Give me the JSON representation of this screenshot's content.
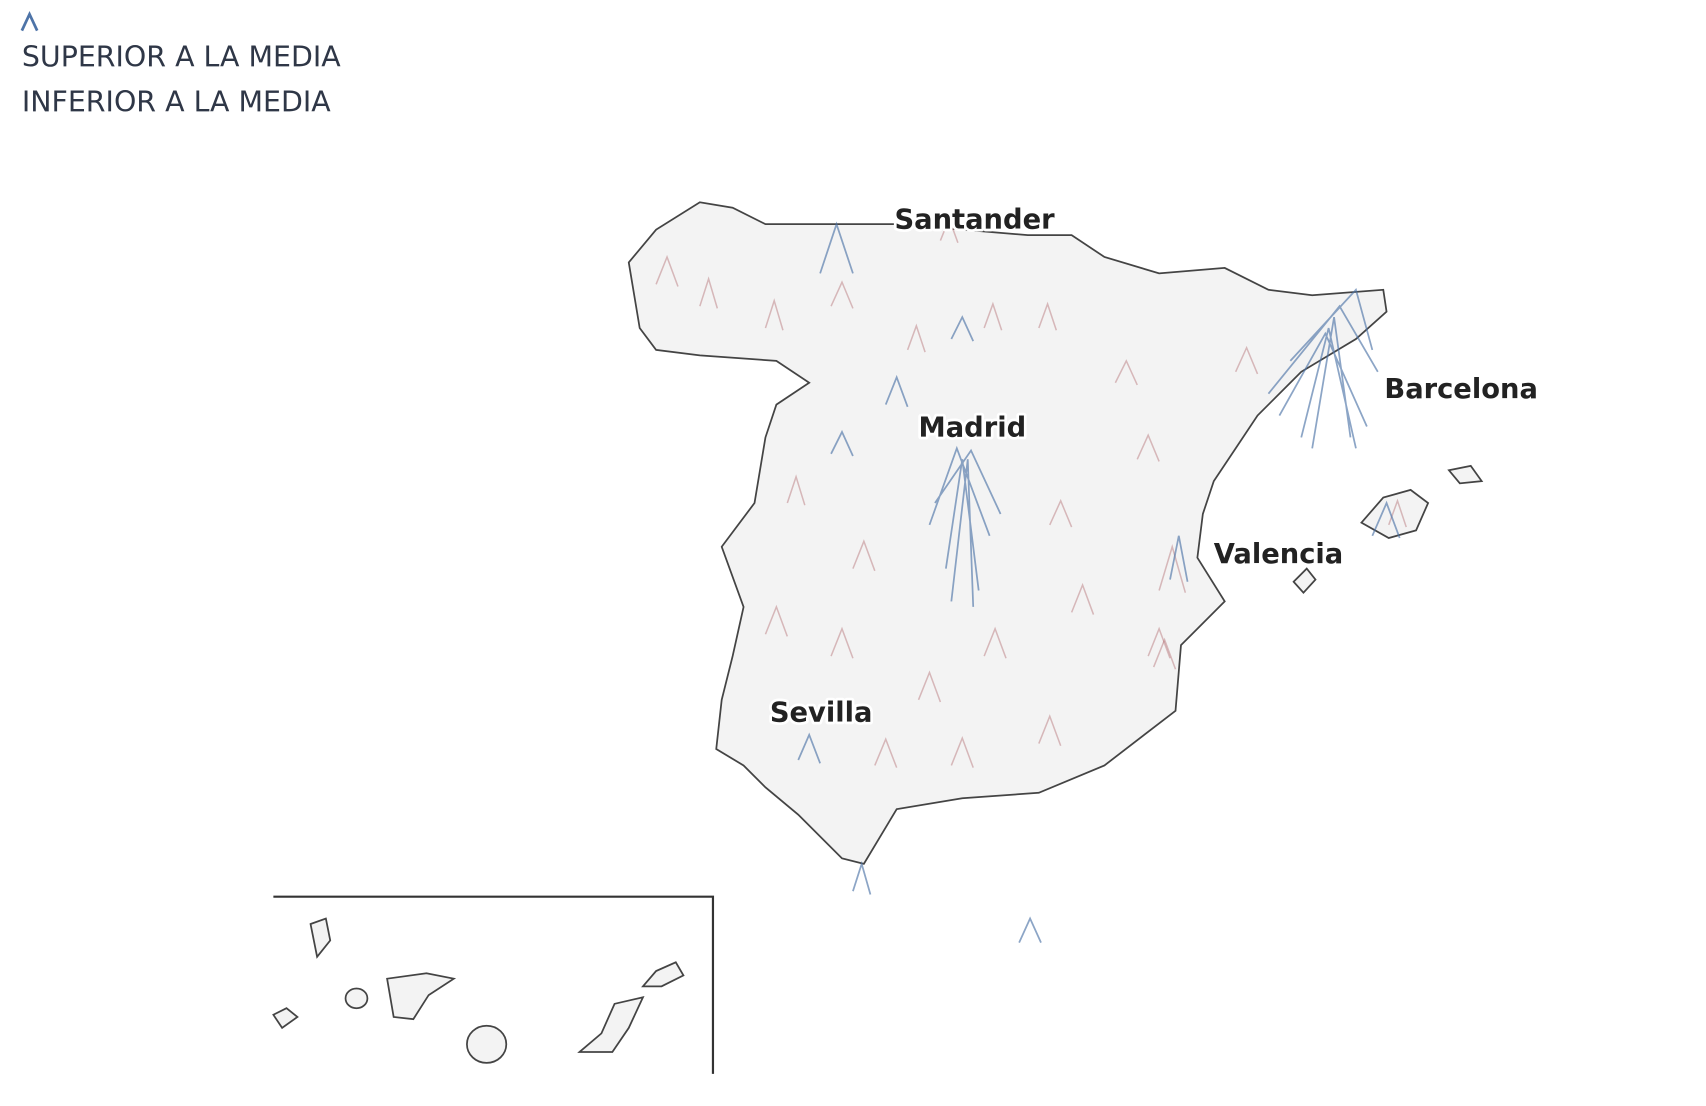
{
  "legend": {
    "items": [
      "SUPERIOR A LA MEDIA",
      "INFERIOR A LA MEDIA"
    ]
  },
  "labels": [
    "Santander",
    "Barcelona",
    "Madrid",
    "Valencia",
    "Sevilla"
  ]
}
